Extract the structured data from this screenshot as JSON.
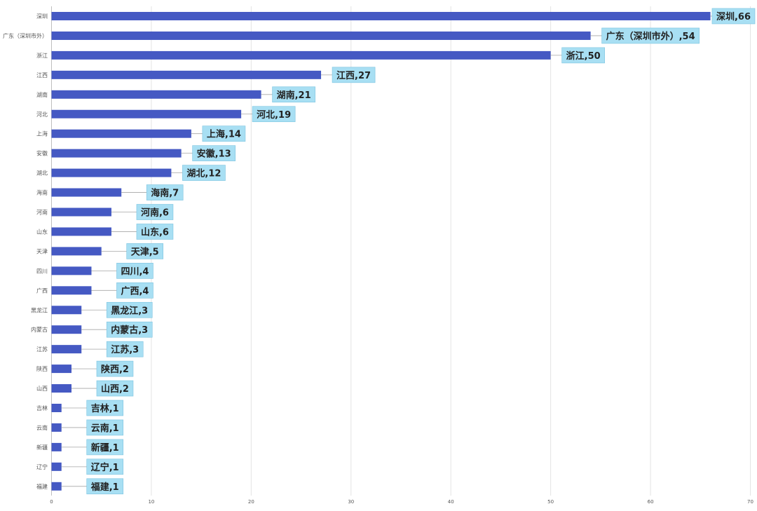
{
  "chart_data": {
    "type": "bar",
    "orientation": "horizontal",
    "title": "",
    "xlabel": "",
    "ylabel": "",
    "xlim": [
      0,
      70
    ],
    "x_ticks": [
      0,
      10,
      20,
      30,
      40,
      50,
      60,
      70
    ],
    "grid": true,
    "bar_color": "#4559c3",
    "label_bg_color": "#a8dff3",
    "categories": [
      "深圳",
      "广东（深圳市外）",
      "浙江",
      "江西",
      "湖南",
      "河北",
      "上海",
      "安徽",
      "湖北",
      "海南",
      "河南",
      "山东",
      "天津",
      "四川",
      "广西",
      "黑龙江",
      "内蒙古",
      "江苏",
      "陕西",
      "山西",
      "吉林",
      "云南",
      "新疆",
      "辽宁",
      "福建"
    ],
    "values": [
      66,
      54,
      50,
      27,
      21,
      19,
      14,
      13,
      12,
      7,
      6,
      6,
      5,
      4,
      4,
      3,
      3,
      3,
      2,
      2,
      1,
      1,
      1,
      1,
      1
    ],
    "data_labels": [
      "深圳,66",
      "广东（深圳市外）,54",
      "浙江,50",
      "江西,27",
      "湖南,21",
      "河北,19",
      "上海,14",
      "安徽,13",
      "湖北,12",
      "海南,7",
      "河南,6",
      "山东,6",
      "天津,5",
      "四川,4",
      "广西,4",
      "黑龙江,3",
      "内蒙古,3",
      "江苏,3",
      "陕西,2",
      "山西,2",
      "吉林,1",
      "云南,1",
      "新疆,1",
      "辽宁,1",
      "福建,1"
    ]
  }
}
